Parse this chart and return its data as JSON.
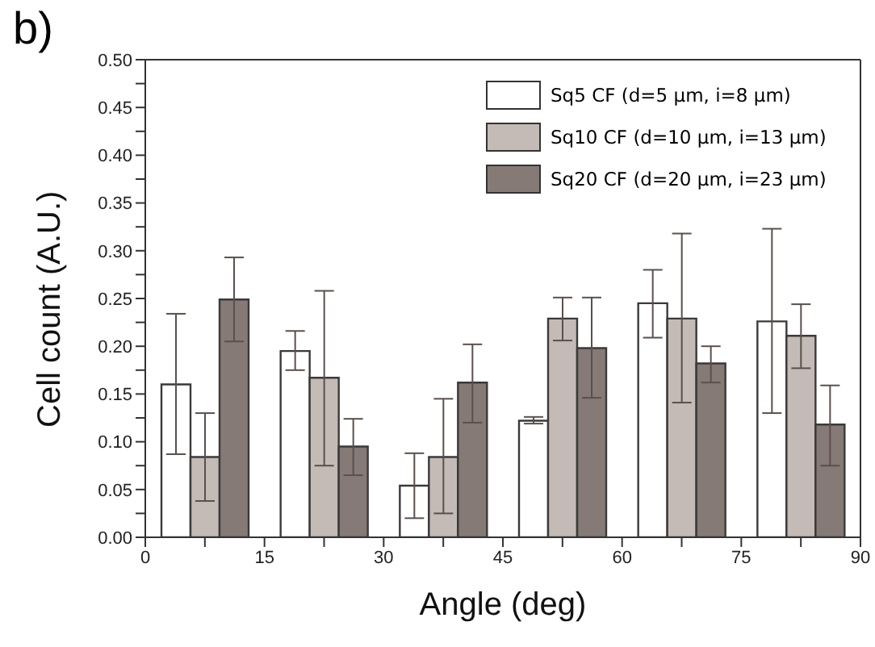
{
  "chart_data": {
    "type": "bar",
    "title": "b)",
    "xlabel": "Angle (deg)",
    "ylabel": "Cell count (A.U.)",
    "x": [
      7.5,
      22.5,
      37.5,
      52.5,
      67.5,
      82.5
    ],
    "series": [
      {
        "name": "Sq5 CF (d=5 μm, i=8 μm)",
        "color": "#ffffff",
        "values": [
          0.16,
          0.195,
          0.054,
          0.122,
          0.245,
          0.226
        ],
        "errors": [
          [
            0.087,
            0.234
          ],
          [
            0.175,
            0.216
          ],
          [
            0.02,
            0.088
          ],
          [
            0.119,
            0.126
          ],
          [
            0.209,
            0.28
          ],
          [
            0.13,
            0.323
          ]
        ]
      },
      {
        "name": "Sq10 CF (d=10 μm, i=13 μm)",
        "color": "#c4bab6",
        "values": [
          0.084,
          0.167,
          0.084,
          0.229,
          0.229,
          0.211
        ],
        "errors": [
          [
            0.038,
            0.13
          ],
          [
            0.075,
            0.258
          ],
          [
            0.025,
            0.145
          ],
          [
            0.206,
            0.251
          ],
          [
            0.141,
            0.318
          ],
          [
            0.177,
            0.244
          ]
        ]
      },
      {
        "name": "Sq20 CF (d=20 μm, i=23 μm)",
        "color": "#857a75",
        "values": [
          0.249,
          0.095,
          0.162,
          0.198,
          0.182,
          0.118
        ],
        "errors": [
          [
            0.205,
            0.293
          ],
          [
            0.065,
            0.124
          ],
          [
            0.12,
            0.202
          ],
          [
            0.146,
            0.251
          ],
          [
            0.162,
            0.2
          ],
          [
            0.075,
            0.159
          ]
        ]
      }
    ],
    "xlim": [
      0,
      90
    ],
    "xticks": [
      0,
      {
        "value": 7.5,
        "label": null
      },
      15,
      {
        "value": 22.5,
        "label": null
      },
      30,
      {
        "value": 37.5,
        "label": null
      },
      45,
      {
        "value": 52.5,
        "label": null
      },
      60,
      {
        "value": 67.5,
        "label": null
      },
      75,
      {
        "value": 82.5,
        "label": null
      },
      90
    ],
    "ylim": [
      0,
      0.5
    ],
    "yticks": [
      {
        "value": 0,
        "label": "0.00"
      },
      {
        "value": 0.025,
        "label": null
      },
      {
        "value": 0.05,
        "label": "0.05"
      },
      {
        "value": 0.075,
        "label": null
      },
      {
        "value": 0.1,
        "label": "0.10"
      },
      {
        "value": 0.125,
        "label": null
      },
      {
        "value": 0.15,
        "label": "0.15"
      },
      {
        "value": 0.175,
        "label": null
      },
      {
        "value": 0.2,
        "label": "0.20"
      },
      {
        "value": 0.225,
        "label": null
      },
      {
        "value": 0.25,
        "label": "0.25"
      },
      {
        "value": 0.275,
        "label": null
      },
      {
        "value": 0.3,
        "label": "0.30"
      },
      {
        "value": 0.325,
        "label": null
      },
      {
        "value": 0.35,
        "label": "0.35"
      },
      {
        "value": 0.375,
        "label": null
      },
      {
        "value": 0.4,
        "label": "0.40"
      },
      {
        "value": 0.425,
        "label": null
      },
      {
        "value": 0.45,
        "label": "0.45"
      },
      {
        "value": 0.475,
        "label": null
      },
      {
        "value": 0.5,
        "label": "0.50"
      }
    ],
    "grid": false,
    "legend": "top right"
  }
}
